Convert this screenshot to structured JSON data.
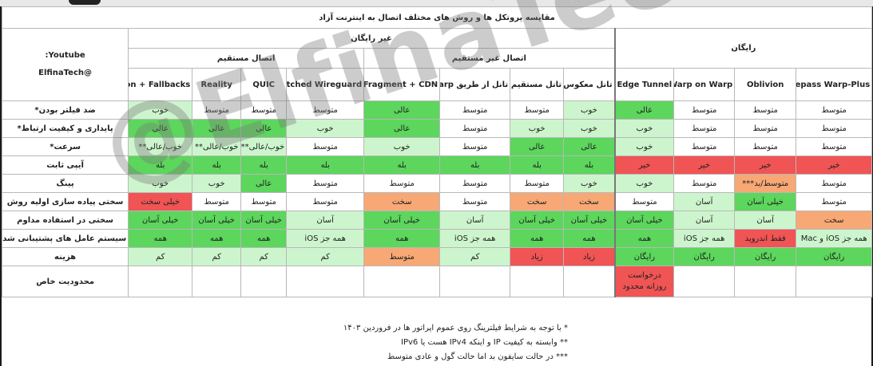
{
  "title": "مقایسه پروتکل ها و روش های مختلف اتصال به اینترنت آزاد",
  "youtube": {
    "line1": "Youtube:",
    "line2": "@ElfinaTech"
  },
  "watermark": "@ElfinaTech",
  "groups": {
    "free": "رایگان",
    "non_free": "غیر رایگان",
    "indirect": "اتصال غیر مستقیم",
    "direct": "اتصال مستقیم"
  },
  "columns": [
    "Bepass Warp-Plus",
    "Oblivion",
    "Warp on Warp",
    "Edge Tunnel",
    "تانل معکوس",
    "تانل مستقیم",
    "تانل از طریق Warp",
    "Fragment + CDN",
    "Patched Wireguard",
    "QUIC",
    "Reality",
    "Vless Vision + Fallbacks"
  ],
  "rows": [
    {
      "label": "ضد فیلتر بودن*",
      "cells": [
        "متوسط",
        "متوسط",
        "متوسط",
        "عالی",
        "خوب",
        "متوسط",
        "متوسط",
        "عالی",
        "متوسط",
        "متوسط",
        "متوسط",
        "خوب"
      ]
    },
    {
      "label": "پایداری و کیفیت ارتباط*",
      "cells": [
        "متوسط",
        "متوسط",
        "متوسط",
        "خوب",
        "خوب",
        "خوب",
        "متوسط",
        "عالی",
        "خوب",
        "عالی",
        "عالی",
        "عالی"
      ]
    },
    {
      "label": "سرعت*",
      "cells": [
        "متوسط",
        "متوسط",
        "متوسط",
        "خوب",
        "عالی",
        "عالی",
        "متوسط",
        "خوب",
        "متوسط",
        "خوب/عالی**",
        "خوب/عالی**",
        "خوب/عالی**"
      ]
    },
    {
      "label": "آیپی ثابت",
      "cells": [
        "خیر",
        "خیر",
        "خیر",
        "خیر",
        "بله",
        "بله",
        "بله",
        "بله",
        "بله",
        "بله",
        "بله",
        "بله"
      ]
    },
    {
      "label": "پینگ",
      "cells": [
        "متوسط",
        "متوسط/بد***",
        "متوسط",
        "خوب",
        "خوب",
        "متوسط",
        "متوسط",
        "متوسط",
        "متوسط",
        "عالی",
        "خوب",
        "خوب"
      ]
    },
    {
      "label": "سختی پیاده سازی اولیه روش",
      "cells": [
        "متوسط",
        "خیلی آسان",
        "آسان",
        "متوسط",
        "سخت",
        "سخت",
        "متوسط",
        "سخت",
        "متوسط",
        "متوسط",
        "متوسط",
        "خیلی سخت"
      ]
    },
    {
      "label": "سختی در استفاده مداوم",
      "cells": [
        "سخت",
        "آسان",
        "آسان",
        "خیلی آسان",
        "خیلی آسان",
        "خیلی آسان",
        "آسان",
        "خیلی آسان",
        "آسان",
        "خیلی آسان",
        "خیلی آسان",
        "خیلی آسان"
      ]
    },
    {
      "label": "سیستم عامل های پشتیبانی شده",
      "cells": [
        "همه جز iOS و Mac",
        "فقط اندروید",
        "همه جز iOS",
        "همه",
        "همه",
        "همه",
        "همه جز iOS",
        "همه",
        "همه جز iOS",
        "همه",
        "همه",
        "همه"
      ]
    },
    {
      "label": "هزینه",
      "cells": [
        "رایگان",
        "رایگان",
        "رایگان",
        "رایگان",
        "زیاد",
        "زیاد",
        "کم",
        "متوسط",
        "کم",
        "کم",
        "کم",
        "کم"
      ]
    },
    {
      "label": "محدودیت خاص",
      "cells": [
        "",
        "",
        "",
        "درخواست روزانه محدود",
        "",
        "",
        "",
        "",
        "",
        "",
        "",
        ""
      ]
    }
  ],
  "notes": [
    "* با توجه به شرایط فیلترینگ روی عموم اپراتور ها در فروردین ۱۴۰۳",
    "** وابسته به کیفیت IP و اینکه IPv4 هست یا IPv6",
    "*** در حالت سایفون بد اما حالت گول و عادی متوسط"
  ],
  "colors": {
    "excellent": "#5cd65c",
    "good": "#cdf5cd",
    "bad": "#f05454",
    "hard": "#f7a875",
    "youtube": "#e00000"
  }
}
